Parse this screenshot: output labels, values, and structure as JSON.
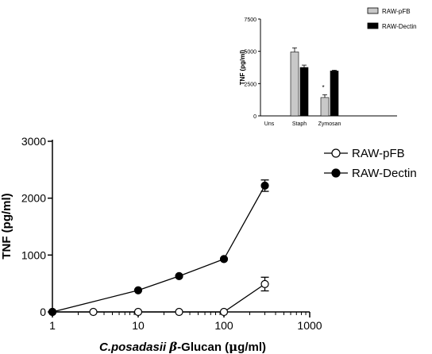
{
  "chart_data": [
    {
      "type": "bar",
      "categories": [
        "Uns",
        "Staph",
        "Zymosan"
      ],
      "ylabel": "TNF (pg/ml)",
      "ylim": [
        0,
        7500
      ],
      "yticks": [
        "0",
        "2500",
        "5000",
        "7500"
      ],
      "legend_position": "top-right",
      "series": [
        {
          "name": "RAW-pFB",
          "color": "#c8c8c8",
          "values": [
            0,
            4950,
            1420
          ],
          "errors": [
            0,
            320,
            220
          ]
        },
        {
          "name": "RAW-Dectin",
          "color": "#000000",
          "values": [
            0,
            3750,
            3480
          ],
          "errors": [
            0,
            180,
            60
          ]
        }
      ],
      "annotations": [
        {
          "text": "*",
          "category": "Zymosan",
          "series": "RAW-pFB"
        }
      ]
    },
    {
      "type": "line",
      "xlabel_italic": "C.posadasii",
      "xlabel_beta": "β",
      "xlabel_rest": "-Glucan (",
      "xlabel_mu": "μ",
      "xlabel_end": "g/ml)",
      "ylabel": "TNF (pg/ml)",
      "xscale": "log",
      "xlim": [
        1,
        1000
      ],
      "xticks": [
        "1",
        "10",
        "100",
        "1000"
      ],
      "ylim": [
        0,
        3000
      ],
      "yticks": [
        "0",
        "1000",
        "2000",
        "3000"
      ],
      "legend_position": "top-right",
      "series": [
        {
          "name": "RAW-pFB",
          "marker": "open-circle",
          "x": [
            1,
            3,
            10,
            30,
            100,
            300
          ],
          "y": [
            0,
            0,
            0,
            0,
            0,
            490
          ],
          "errors": [
            0,
            0,
            0,
            0,
            0,
            120
          ]
        },
        {
          "name": "RAW-Dectin",
          "marker": "filled-circle",
          "x": [
            1,
            10,
            30,
            100,
            300
          ],
          "y": [
            0,
            380,
            630,
            930,
            2220
          ],
          "errors": [
            0,
            0,
            0,
            0,
            100
          ]
        }
      ]
    }
  ]
}
